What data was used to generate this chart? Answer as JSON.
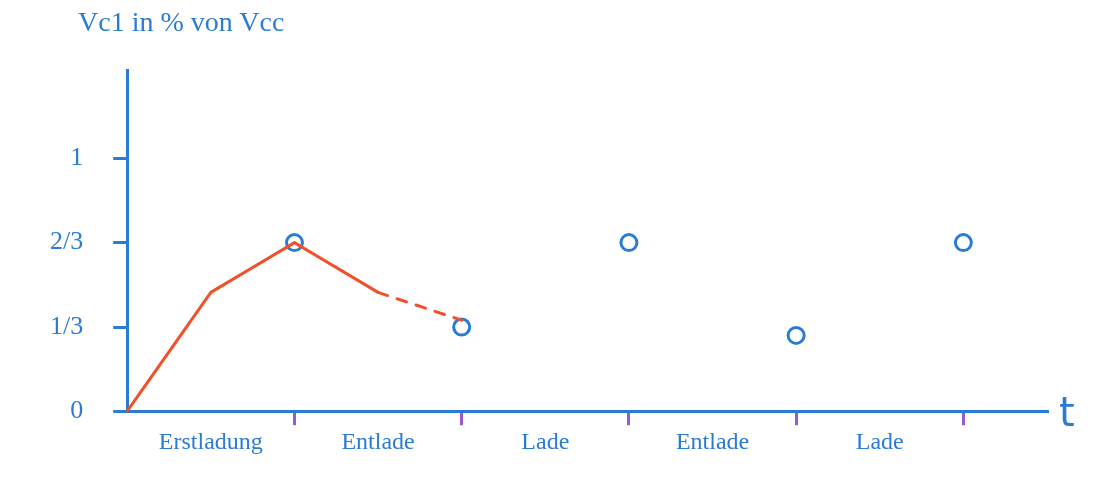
{
  "chart_data": {
    "type": "scatter",
    "ylabel": "Vc1 in % von Vcc",
    "xlabel": "t",
    "categories": [
      null,
      "Erstladung",
      null,
      "Entlade",
      null,
      "Lade",
      null,
      "Entlade",
      null,
      "Lade",
      null,
      null
    ],
    "ylim": [
      0,
      1.35
    ],
    "yticks": [
      {
        "value": 0,
        "label": "0"
      },
      {
        "value": 0.333,
        "label": "1/3"
      },
      {
        "value": 0.667,
        "label": "2/3"
      },
      1
    ],
    "grid": false,
    "legend": false,
    "marker": "circle",
    "series": [
      {
        "type": "scatter",
        "color": "#2a7bd4",
        "values": [
          null,
          null,
          0.667,
          null,
          0.333,
          null,
          0.667,
          null,
          0.3,
          null,
          0.667,
          null
        ]
      },
      {
        "type": "line",
        "color": "#f0502a",
        "marker": "none",
        "line_style": "solid",
        "values": [
          0,
          0.47,
          0.667,
          0.47,
          null,
          null,
          null,
          null,
          null,
          null,
          null,
          null
        ]
      },
      {
        "type": "line",
        "color": "#f0502a",
        "marker": "none",
        "line_style": "dashed",
        "values": [
          null,
          null,
          null,
          0.47,
          0.36,
          null,
          null,
          null,
          null,
          null,
          null,
          null
        ]
      }
    ]
  }
}
